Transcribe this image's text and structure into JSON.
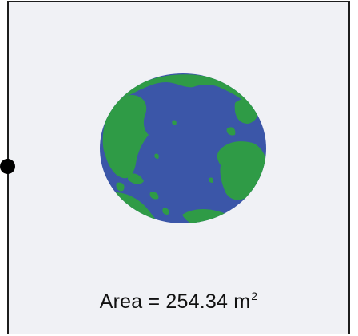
{
  "colors": {
    "panel_background": "#f0f1f5",
    "border": "#1d1d1d",
    "ocean": "#3b56a8",
    "land": "#2f9b46",
    "marker": "#000000"
  },
  "globe": {
    "icon": "earth-globe-icon"
  },
  "caption": {
    "prefix": "Area = 254.34 m",
    "exponent": "2"
  }
}
